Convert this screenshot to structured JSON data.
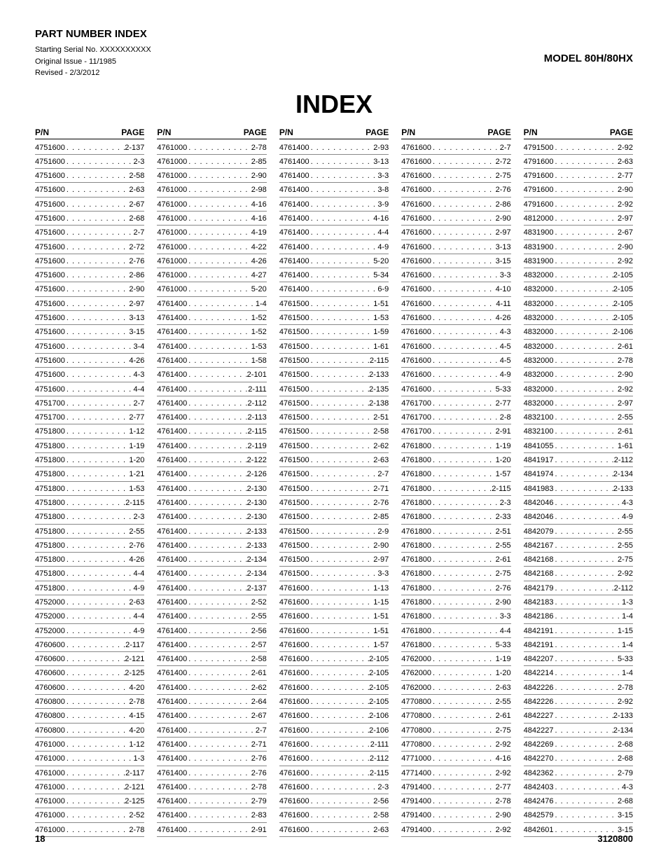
{
  "header": {
    "title": "PART NUMBER INDEX",
    "serial": "Starting Serial No. XXXXXXXXXX",
    "issue": "Original Issue - 11/1985",
    "revised": "Revised - 2/3/2012",
    "model": "MODEL 80H/80HX"
  },
  "index_title": "INDEX",
  "col_header_pn": "P/N",
  "col_header_page": "PAGE",
  "columns": [
    [
      {
        "pn": "4751600",
        "pg": "2-137"
      },
      {
        "pn": "4751600",
        "pg": "2-3"
      },
      {
        "pn": "4751600",
        "pg": "2-58"
      },
      {
        "pn": "4751600",
        "pg": "2-63"
      },
      {
        "pn": "4751600",
        "pg": "2-67"
      },
      {
        "pn": "4751600",
        "pg": "2-68"
      },
      {
        "pn": "4751600",
        "pg": "2-7"
      },
      {
        "pn": "4751600",
        "pg": "2-72"
      },
      {
        "pn": "4751600",
        "pg": "2-76"
      },
      {
        "pn": "4751600",
        "pg": "2-86"
      },
      {
        "pn": "4751600",
        "pg": "2-90"
      },
      {
        "pn": "4751600",
        "pg": "2-97"
      },
      {
        "pn": "4751600",
        "pg": "3-13"
      },
      {
        "pn": "4751600",
        "pg": "3-15"
      },
      {
        "pn": "4751600",
        "pg": "3-4"
      },
      {
        "pn": "4751600",
        "pg": "4-26"
      },
      {
        "pn": "4751600",
        "pg": "4-3"
      },
      {
        "pn": "4751600",
        "pg": "4-4"
      },
      {
        "pn": "4751700",
        "pg": "2-7"
      },
      {
        "pn": "4751700",
        "pg": "2-77"
      },
      {
        "pn": "4751800",
        "pg": "1-12"
      },
      {
        "pn": "4751800",
        "pg": "1-19"
      },
      {
        "pn": "4751800",
        "pg": "1-20"
      },
      {
        "pn": "4751800",
        "pg": "1-21"
      },
      {
        "pn": "4751800",
        "pg": "1-53"
      },
      {
        "pn": "4751800",
        "pg": "2-115"
      },
      {
        "pn": "4751800",
        "pg": "2-3"
      },
      {
        "pn": "4751800",
        "pg": "2-55"
      },
      {
        "pn": "4751800",
        "pg": "2-76"
      },
      {
        "pn": "4751800",
        "pg": "4-26"
      },
      {
        "pn": "4751800",
        "pg": "4-4"
      },
      {
        "pn": "4751800",
        "pg": "4-9"
      },
      {
        "pn": "4752000",
        "pg": "2-63"
      },
      {
        "pn": "4752000",
        "pg": "4-4"
      },
      {
        "pn": "4752000",
        "pg": "4-9"
      },
      {
        "pn": "4760600",
        "pg": "2-117"
      },
      {
        "pn": "4760600",
        "pg": "2-121"
      },
      {
        "pn": "4760600",
        "pg": "2-125"
      },
      {
        "pn": "4760600",
        "pg": "4-20"
      },
      {
        "pn": "4760800",
        "pg": "2-78"
      },
      {
        "pn": "4760800",
        "pg": "4-15"
      },
      {
        "pn": "4760800",
        "pg": "4-20"
      },
      {
        "pn": "4761000",
        "pg": "1-12"
      },
      {
        "pn": "4761000",
        "pg": "1-3"
      },
      {
        "pn": "4761000",
        "pg": "2-117"
      },
      {
        "pn": "4761000",
        "pg": "2-121"
      },
      {
        "pn": "4761000",
        "pg": "2-125"
      },
      {
        "pn": "4761000",
        "pg": "2-52"
      },
      {
        "pn": "4761000",
        "pg": "2-78"
      }
    ],
    [
      {
        "pn": "4761000",
        "pg": "2-78"
      },
      {
        "pn": "4761000",
        "pg": "2-85"
      },
      {
        "pn": "4761000",
        "pg": "2-90"
      },
      {
        "pn": "4761000",
        "pg": "2-98"
      },
      {
        "pn": "4761000",
        "pg": "4-16"
      },
      {
        "pn": "4761000",
        "pg": "4-16"
      },
      {
        "pn": "4761000",
        "pg": "4-19"
      },
      {
        "pn": "4761000",
        "pg": "4-22"
      },
      {
        "pn": "4761000",
        "pg": "4-26"
      },
      {
        "pn": "4761000",
        "pg": "4-27"
      },
      {
        "pn": "4761000",
        "pg": "5-20"
      },
      {
        "pn": "4761400",
        "pg": "1-4"
      },
      {
        "pn": "4761400",
        "pg": "1-52"
      },
      {
        "pn": "4761400",
        "pg": "1-52"
      },
      {
        "pn": "4761400",
        "pg": "1-53"
      },
      {
        "pn": "4761400",
        "pg": "1-58"
      },
      {
        "pn": "4761400",
        "pg": "2-101"
      },
      {
        "pn": "4761400",
        "pg": "2-111"
      },
      {
        "pn": "4761400",
        "pg": "2-112"
      },
      {
        "pn": "4761400",
        "pg": "2-113"
      },
      {
        "pn": "4761400",
        "pg": "2-115"
      },
      {
        "pn": "4761400",
        "pg": "2-119"
      },
      {
        "pn": "4761400",
        "pg": "2-122"
      },
      {
        "pn": "4761400",
        "pg": "2-126"
      },
      {
        "pn": "4761400",
        "pg": "2-130"
      },
      {
        "pn": "4761400",
        "pg": "2-130"
      },
      {
        "pn": "4761400",
        "pg": "2-130"
      },
      {
        "pn": "4761400",
        "pg": "2-133"
      },
      {
        "pn": "4761400",
        "pg": "2-133"
      },
      {
        "pn": "4761400",
        "pg": "2-134"
      },
      {
        "pn": "4761400",
        "pg": "2-134"
      },
      {
        "pn": "4761400",
        "pg": "2-137"
      },
      {
        "pn": "4761400",
        "pg": "2-52"
      },
      {
        "pn": "4761400",
        "pg": "2-55"
      },
      {
        "pn": "4761400",
        "pg": "2-56"
      },
      {
        "pn": "4761400",
        "pg": "2-57"
      },
      {
        "pn": "4761400",
        "pg": "2-58"
      },
      {
        "pn": "4761400",
        "pg": "2-61"
      },
      {
        "pn": "4761400",
        "pg": "2-62"
      },
      {
        "pn": "4761400",
        "pg": "2-64"
      },
      {
        "pn": "4761400",
        "pg": "2-67"
      },
      {
        "pn": "4761400",
        "pg": "2-7"
      },
      {
        "pn": "4761400",
        "pg": "2-71"
      },
      {
        "pn": "4761400",
        "pg": "2-76"
      },
      {
        "pn": "4761400",
        "pg": "2-76"
      },
      {
        "pn": "4761400",
        "pg": "2-78"
      },
      {
        "pn": "4761400",
        "pg": "2-79"
      },
      {
        "pn": "4761400",
        "pg": "2-83"
      },
      {
        "pn": "4761400",
        "pg": "2-91"
      }
    ],
    [
      {
        "pn": "4761400",
        "pg": "2-93"
      },
      {
        "pn": "4761400",
        "pg": "3-13"
      },
      {
        "pn": "4761400",
        "pg": "3-3"
      },
      {
        "pn": "4761400",
        "pg": "3-8"
      },
      {
        "pn": "4761400",
        "pg": "3-9"
      },
      {
        "pn": "4761400",
        "pg": "4-16"
      },
      {
        "pn": "4761400",
        "pg": "4-4"
      },
      {
        "pn": "4761400",
        "pg": "4-9"
      },
      {
        "pn": "4761400",
        "pg": "5-20"
      },
      {
        "pn": "4761400",
        "pg": "5-34"
      },
      {
        "pn": "4761400",
        "pg": "6-9"
      },
      {
        "pn": "4761500",
        "pg": "1-51"
      },
      {
        "pn": "4761500",
        "pg": "1-53"
      },
      {
        "pn": "4761500",
        "pg": "1-59"
      },
      {
        "pn": "4761500",
        "pg": "1-61"
      },
      {
        "pn": "4761500",
        "pg": "2-115"
      },
      {
        "pn": "4761500",
        "pg": "2-133"
      },
      {
        "pn": "4761500",
        "pg": "2-135"
      },
      {
        "pn": "4761500",
        "pg": "2-138"
      },
      {
        "pn": "4761500",
        "pg": "2-51"
      },
      {
        "pn": "4761500",
        "pg": "2-58"
      },
      {
        "pn": "4761500",
        "pg": "2-62"
      },
      {
        "pn": "4761500",
        "pg": "2-63"
      },
      {
        "pn": "4761500",
        "pg": "2-7"
      },
      {
        "pn": "4761500",
        "pg": "2-71"
      },
      {
        "pn": "4761500",
        "pg": "2-76"
      },
      {
        "pn": "4761500",
        "pg": "2-85"
      },
      {
        "pn": "4761500",
        "pg": "2-9"
      },
      {
        "pn": "4761500",
        "pg": "2-90"
      },
      {
        "pn": "4761500",
        "pg": "2-97"
      },
      {
        "pn": "4761500",
        "pg": "3-3"
      },
      {
        "pn": "4761600",
        "pg": "1-13"
      },
      {
        "pn": "4761600",
        "pg": "1-15"
      },
      {
        "pn": "4761600",
        "pg": "1-51"
      },
      {
        "pn": "4761600",
        "pg": "1-51"
      },
      {
        "pn": "4761600",
        "pg": "1-57"
      },
      {
        "pn": "4761600",
        "pg": "2-105"
      },
      {
        "pn": "4761600",
        "pg": "2-105"
      },
      {
        "pn": "4761600",
        "pg": "2-105"
      },
      {
        "pn": "4761600",
        "pg": "2-105"
      },
      {
        "pn": "4761600",
        "pg": "2-106"
      },
      {
        "pn": "4761600",
        "pg": "2-106"
      },
      {
        "pn": "4761600",
        "pg": "2-111"
      },
      {
        "pn": "4761600",
        "pg": "2-112"
      },
      {
        "pn": "4761600",
        "pg": "2-115"
      },
      {
        "pn": "4761600",
        "pg": "2-3"
      },
      {
        "pn": "4761600",
        "pg": "2-56"
      },
      {
        "pn": "4761600",
        "pg": "2-58"
      },
      {
        "pn": "4761600",
        "pg": "2-63"
      }
    ],
    [
      {
        "pn": "4761600",
        "pg": "2-7"
      },
      {
        "pn": "4761600",
        "pg": "2-72"
      },
      {
        "pn": "4761600",
        "pg": "2-75"
      },
      {
        "pn": "4761600",
        "pg": "2-76"
      },
      {
        "pn": "4761600",
        "pg": "2-86"
      },
      {
        "pn": "4761600",
        "pg": "2-90"
      },
      {
        "pn": "4761600",
        "pg": "2-97"
      },
      {
        "pn": "4761600",
        "pg": "3-13"
      },
      {
        "pn": "4761600",
        "pg": "3-15"
      },
      {
        "pn": "4761600",
        "pg": "3-3"
      },
      {
        "pn": "4761600",
        "pg": "4-10"
      },
      {
        "pn": "4761600",
        "pg": "4-11"
      },
      {
        "pn": "4761600",
        "pg": "4-26"
      },
      {
        "pn": "4761600",
        "pg": "4-3"
      },
      {
        "pn": "4761600",
        "pg": "4-5"
      },
      {
        "pn": "4761600",
        "pg": "4-5"
      },
      {
        "pn": "4761600",
        "pg": "4-9"
      },
      {
        "pn": "4761600",
        "pg": "5-33"
      },
      {
        "pn": "4761700",
        "pg": "2-77"
      },
      {
        "pn": "4761700",
        "pg": "2-8"
      },
      {
        "pn": "4761700",
        "pg": "2-91"
      },
      {
        "pn": "4761800",
        "pg": "1-19"
      },
      {
        "pn": "4761800",
        "pg": "1-20"
      },
      {
        "pn": "4761800",
        "pg": "1-57"
      },
      {
        "pn": "4761800",
        "pg": "2-115"
      },
      {
        "pn": "4761800",
        "pg": "2-3"
      },
      {
        "pn": "4761800",
        "pg": "2-33"
      },
      {
        "pn": "4761800",
        "pg": "2-51"
      },
      {
        "pn": "4761800",
        "pg": "2-55"
      },
      {
        "pn": "4761800",
        "pg": "2-61"
      },
      {
        "pn": "4761800",
        "pg": "2-75"
      },
      {
        "pn": "4761800",
        "pg": "2-76"
      },
      {
        "pn": "4761800",
        "pg": "2-90"
      },
      {
        "pn": "4761800",
        "pg": "3-3"
      },
      {
        "pn": "4761800",
        "pg": "4-4"
      },
      {
        "pn": "4761800",
        "pg": "5-33"
      },
      {
        "pn": "4762000",
        "pg": "1-19"
      },
      {
        "pn": "4762000",
        "pg": "1-20"
      },
      {
        "pn": "4762000",
        "pg": "2-63"
      },
      {
        "pn": "4770800",
        "pg": "2-55"
      },
      {
        "pn": "4770800",
        "pg": "2-61"
      },
      {
        "pn": "4770800",
        "pg": "2-75"
      },
      {
        "pn": "4770800",
        "pg": "2-92"
      },
      {
        "pn": "4771000",
        "pg": "4-16"
      },
      {
        "pn": "4771400",
        "pg": "2-92"
      },
      {
        "pn": "4791400",
        "pg": "2-77"
      },
      {
        "pn": "4791400",
        "pg": "2-78"
      },
      {
        "pn": "4791400",
        "pg": "2-90"
      },
      {
        "pn": "4791400",
        "pg": "2-92"
      }
    ],
    [
      {
        "pn": "4791500",
        "pg": "2-92"
      },
      {
        "pn": "4791600",
        "pg": "2-63"
      },
      {
        "pn": "4791600",
        "pg": "2-77"
      },
      {
        "pn": "4791600",
        "pg": "2-90"
      },
      {
        "pn": "4791600",
        "pg": "2-92"
      },
      {
        "pn": "4812000",
        "pg": "2-97"
      },
      {
        "pn": "4831900",
        "pg": "2-67"
      },
      {
        "pn": "4831900",
        "pg": "2-90"
      },
      {
        "pn": "4831900",
        "pg": "2-92"
      },
      {
        "pn": "4832000",
        "pg": "2-105"
      },
      {
        "pn": "4832000",
        "pg": "2-105"
      },
      {
        "pn": "4832000",
        "pg": "2-105"
      },
      {
        "pn": "4832000",
        "pg": "2-105"
      },
      {
        "pn": "4832000",
        "pg": "2-106"
      },
      {
        "pn": "4832000",
        "pg": "2-61"
      },
      {
        "pn": "4832000",
        "pg": "2-78"
      },
      {
        "pn": "4832000",
        "pg": "2-90"
      },
      {
        "pn": "4832000",
        "pg": "2-92"
      },
      {
        "pn": "4832000",
        "pg": "2-97"
      },
      {
        "pn": "4832100",
        "pg": "2-55"
      },
      {
        "pn": "4832100",
        "pg": "2-61"
      },
      {
        "pn": "4841055",
        "pg": "1-61"
      },
      {
        "pn": "4841917",
        "pg": "2-112"
      },
      {
        "pn": "4841974",
        "pg": "2-134"
      },
      {
        "pn": "4841983",
        "pg": "2-133"
      },
      {
        "pn": "4842046",
        "pg": "4-3"
      },
      {
        "pn": "4842046",
        "pg": "4-9"
      },
      {
        "pn": "4842079",
        "pg": "2-55"
      },
      {
        "pn": "4842167",
        "pg": "2-55"
      },
      {
        "pn": "4842168",
        "pg": "2-75"
      },
      {
        "pn": "4842168",
        "pg": "2-92"
      },
      {
        "pn": "4842179",
        "pg": "2-112"
      },
      {
        "pn": "4842183",
        "pg": "1-3"
      },
      {
        "pn": "4842186",
        "pg": "1-4"
      },
      {
        "pn": "4842191",
        "pg": "1-15"
      },
      {
        "pn": "4842191",
        "pg": "1-4"
      },
      {
        "pn": "4842207",
        "pg": "5-33"
      },
      {
        "pn": "4842214",
        "pg": "1-4"
      },
      {
        "pn": "4842226",
        "pg": "2-78"
      },
      {
        "pn": "4842226",
        "pg": "2-92"
      },
      {
        "pn": "4842227",
        "pg": "2-133"
      },
      {
        "pn": "4842227",
        "pg": "2-134"
      },
      {
        "pn": "4842269",
        "pg": "2-68"
      },
      {
        "pn": "4842270",
        "pg": "2-68"
      },
      {
        "pn": "4842362",
        "pg": "2-79"
      },
      {
        "pn": "4842403",
        "pg": "4-3"
      },
      {
        "pn": "4842476",
        "pg": "2-68"
      },
      {
        "pn": "4842579",
        "pg": "3-15"
      },
      {
        "pn": "4842601",
        "pg": "3-15"
      }
    ]
  ],
  "footer": {
    "page": "18",
    "docnum": "3120800"
  }
}
